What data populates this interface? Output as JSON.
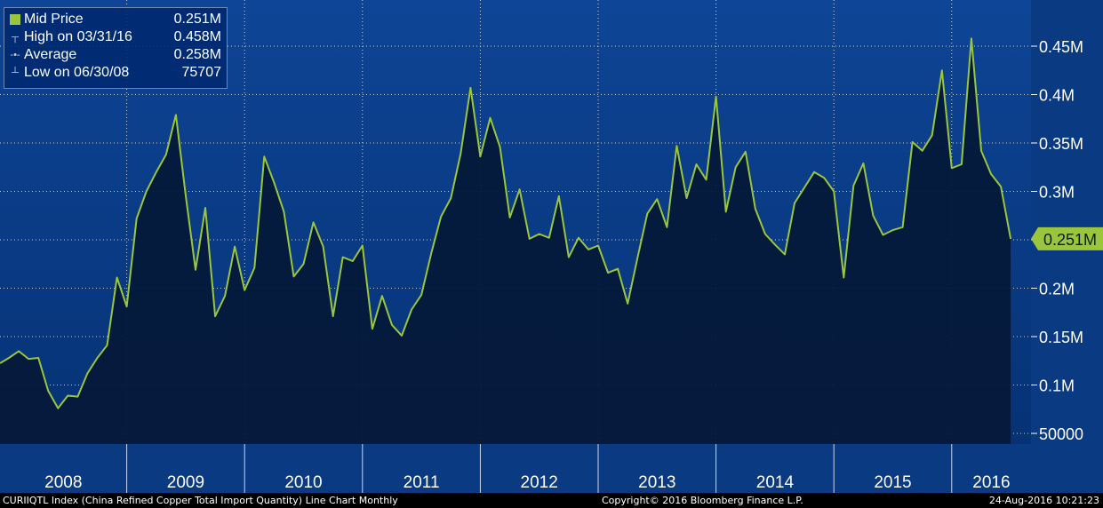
{
  "colors": {
    "plot_top": "#0e4596",
    "plot_bottom": "#063275",
    "fill": "#05193a",
    "line": "#9bc53d",
    "grid": "#ffffff",
    "axis_bg": "#0a3a82",
    "label_bg": "#9bc53d"
  },
  "legend": {
    "mid_label": "Mid Price",
    "mid_value": "0.251M",
    "high_label": "High on 03/31/16",
    "high_value": "0.458M",
    "avg_label": "Average",
    "avg_value": "0.258M",
    "low_label": "Low on 06/30/08",
    "low_value": "75707"
  },
  "last_value_label": "0.251M",
  "footer": {
    "left": "CURIIQTL Index (China Refined Copper Total Import Quantity) Line Chart  Monthly",
    "center": "Copyright© 2016 Bloomberg Finance L.P.",
    "right": "24-Aug-2016 10:21:23"
  },
  "chart_data": {
    "type": "area",
    "frequency": "Monthly",
    "x_start": "2008-01",
    "x_end": "2016-07",
    "years": [
      "2008",
      "2009",
      "2010",
      "2011",
      "2012",
      "2013",
      "2014",
      "2015",
      "2016"
    ],
    "ylim": [
      40000,
      500000
    ],
    "y_ticks": [
      50000,
      100000,
      150000,
      200000,
      250000,
      300000,
      350000,
      400000,
      450000
    ],
    "y_tick_labels": [
      "50000",
      "0.1M",
      "0.15M",
      "0.2M",
      "0.25M",
      "0.3M",
      "0.35M",
      "0.4M",
      "0.45M"
    ],
    "grid": true,
    "series": [
      {
        "values": [
          128000,
          135000,
          127000,
          128000,
          94000,
          76000,
          89000,
          88000,
          112000,
          128000,
          141000,
          211000,
          181000,
          272000,
          300000,
          320000,
          338000,
          379000,
          296000,
          219000,
          283000,
          171000,
          192000,
          243000,
          198000,
          221000,
          336000,
          309000,
          279000,
          212000,
          225000,
          268000,
          243000,
          171000,
          232000,
          228000,
          244000,
          158000,
          192000,
          162000,
          151000,
          178000,
          193000,
          236000,
          274000,
          293000,
          339000,
          407000,
          336000,
          376000,
          346000,
          273000,
          302000,
          251000,
          256000,
          252000,
          295000,
          232000,
          252000,
          240000,
          244000,
          216000,
          220000,
          184000,
          231000,
          277000,
          292000,
          263000,
          347000,
          293000,
          328000,
          312000,
          398000,
          279000,
          325000,
          341000,
          282000,
          256000,
          245000,
          235000,
          288000,
          304000,
          320000,
          314000,
          300000,
          211000,
          306000,
          329000,
          275000,
          255000,
          260000,
          263000,
          351000,
          342000,
          358000,
          425000,
          324000,
          328000,
          458000,
          342000,
          318000,
          305000,
          251000
        ]
      }
    ]
  }
}
